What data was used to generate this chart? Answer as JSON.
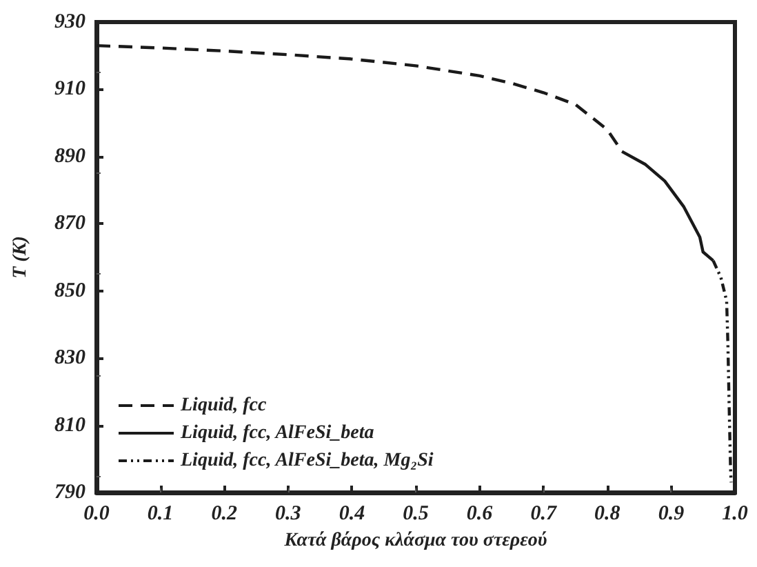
{
  "chart_data": {
    "type": "line",
    "xlabel": "Κατά βάρος κλάσμα του στερεού",
    "ylabel": "T (K)",
    "xlim": [
      0,
      1
    ],
    "ylim": [
      790,
      930
    ],
    "xticks": [
      {
        "value": 0,
        "label": "0.0"
      },
      0.1,
      0.2,
      0.3,
      0.4,
      0.5,
      0.6,
      0.7,
      0.8,
      0.9,
      {
        "value": 1,
        "label": "1.0"
      }
    ],
    "yticks": [
      790,
      810,
      830,
      850,
      870,
      890,
      910,
      930
    ],
    "grid": false,
    "legend": "bottom left",
    "marker": "none",
    "series": [
      {
        "name": "Liquid, fcc",
        "color": "#1a1a1a",
        "line_style": "dashed",
        "x": [
          0,
          0.1,
          0.2,
          0.3,
          0.4,
          0.5,
          0.6,
          0.65,
          0.7,
          0.75,
          0.8,
          0.823
        ],
        "values": [
          923,
          922.3,
          921.4,
          920.3,
          919,
          917,
          914,
          911.8,
          909,
          905.5,
          898,
          891.5
        ]
      },
      {
        "name": "Liquid, fcc, AlFeSi_beta",
        "color": "#1a1a1a",
        "line_style": "solid",
        "x": [
          0.823,
          0.86,
          0.89,
          0.92,
          0.945,
          0.95,
          0.966
        ],
        "values": [
          891.5,
          887.6,
          882.7,
          875,
          866,
          861.6,
          859
        ]
      },
      {
        "name": "Liquid, fcc, AlFeSi_beta, Mg₂Si",
        "color": "#1a1a1a",
        "line_style": "dotted",
        "x": [
          0.966,
          0.978,
          0.987,
          0.989,
          0.991,
          0.993,
          0.994
        ],
        "values": [
          859,
          854,
          847,
          834,
          815,
          798,
          793
        ]
      }
    ]
  }
}
